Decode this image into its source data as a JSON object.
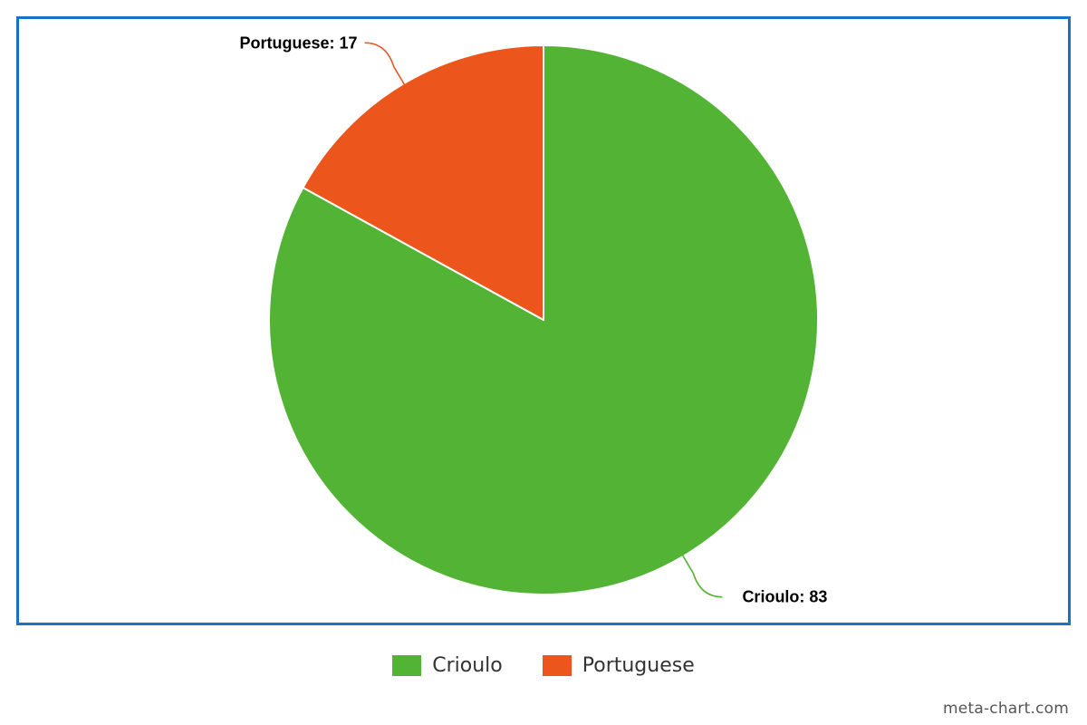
{
  "chart_data": {
    "type": "pie",
    "title": "",
    "slices": [
      {
        "label": "Crioulo",
        "value": 83,
        "color": "#52b334",
        "data_label": "Crioulo: 83"
      },
      {
        "label": "Portuguese",
        "value": 17,
        "color": "#ec561d",
        "data_label": "Portuguese: 17"
      }
    ],
    "start_angle_deg": 0,
    "direction": "clockwise",
    "legend": {
      "position": "bottom",
      "entries": [
        "Crioulo",
        "Portuguese"
      ]
    }
  },
  "frame_border_color": "#1a73c2",
  "watermark": "meta-chart.com"
}
